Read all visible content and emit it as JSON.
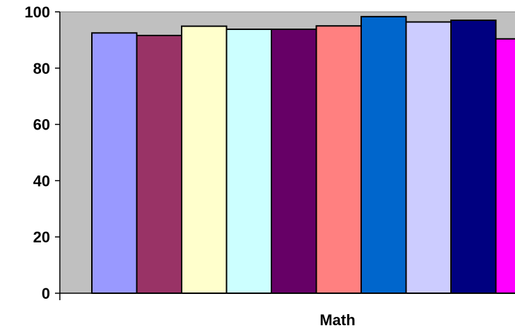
{
  "chart_data": {
    "type": "bar",
    "categories": [
      "Math"
    ],
    "xlabel": "",
    "ylabel": "",
    "ylim": [
      0,
      100
    ],
    "yticks": [
      0,
      20,
      40,
      60,
      80,
      100
    ],
    "grid": false,
    "legend": "none",
    "plot_background": "#c0c0c0",
    "series": [
      {
        "values": [
          92.5
        ],
        "color": "#9999ff"
      },
      {
        "values": [
          91.6
        ],
        "color": "#993366"
      },
      {
        "values": [
          94.9
        ],
        "color": "#ffffcc"
      },
      {
        "values": [
          93.8
        ],
        "color": "#ccffff"
      },
      {
        "values": [
          93.8
        ],
        "color": "#660066"
      },
      {
        "values": [
          95.0
        ],
        "color": "#ff8080"
      },
      {
        "values": [
          98.3
        ],
        "color": "#0066cc"
      },
      {
        "values": [
          96.4
        ],
        "color": "#ccccff"
      },
      {
        "values": [
          97.0
        ],
        "color": "#000080"
      },
      {
        "values": [
          90.4
        ],
        "color": "#ff00ff"
      }
    ]
  }
}
